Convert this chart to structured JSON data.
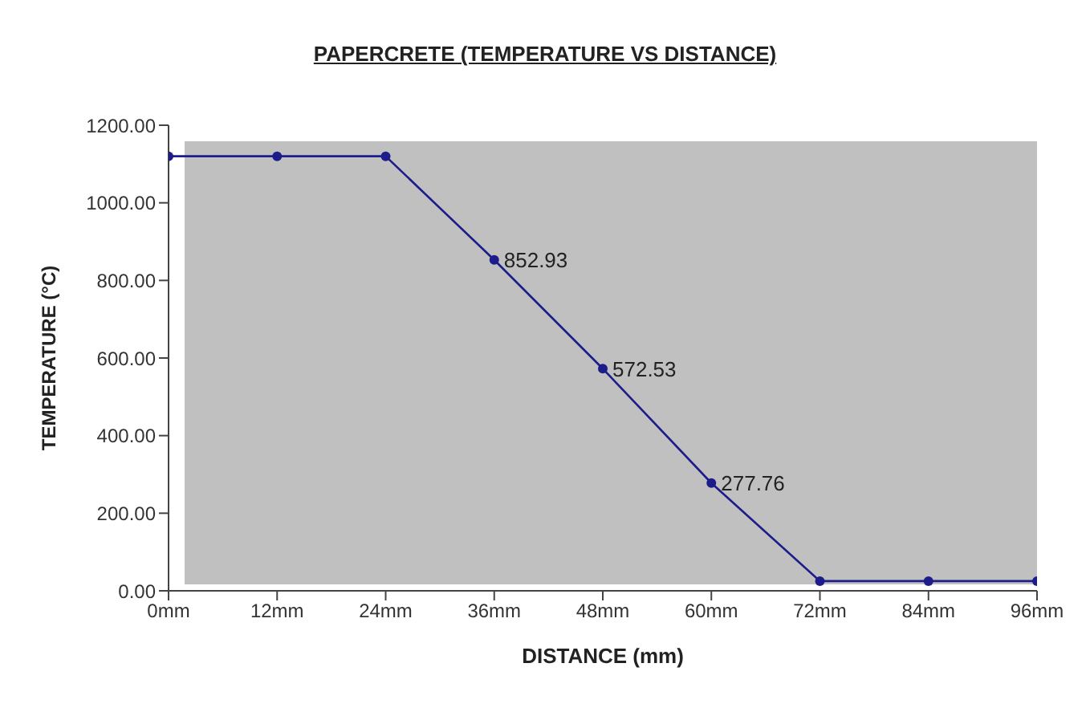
{
  "chart_data": {
    "type": "line",
    "title": "PAPERCRETE (TEMPERATURE VS DISTANCE)",
    "xlabel": "DISTANCE (mm)",
    "ylabel": "TEMPERATURE (°C)",
    "categories": [
      "0mm",
      "12mm",
      "24mm",
      "36mm",
      "48mm",
      "60mm",
      "72mm",
      "84mm",
      "96mm"
    ],
    "series": [
      {
        "color": "#1c1c8a",
        "values": [
          1120,
          1120,
          1120,
          852.93,
          572.53,
          277.76,
          25,
          25,
          25
        ],
        "value_labels": [
          null,
          null,
          null,
          "852.93",
          "572.53",
          "277.76",
          null,
          null,
          null
        ]
      }
    ],
    "ylim": [
      0,
      1200
    ],
    "yticks": [
      {
        "value": 0,
        "label": "0.00"
      },
      {
        "value": 200,
        "label": "200.00"
      },
      {
        "value": 400,
        "label": "400.00"
      },
      {
        "value": 600,
        "label": "600.00"
      },
      {
        "value": 800,
        "label": "800.00"
      },
      {
        "value": 1000,
        "label": "1000.00"
      },
      {
        "value": 1200,
        "label": "1200.00"
      }
    ],
    "grid": false,
    "legend": false,
    "marker": "circle",
    "line_style": "solid"
  }
}
